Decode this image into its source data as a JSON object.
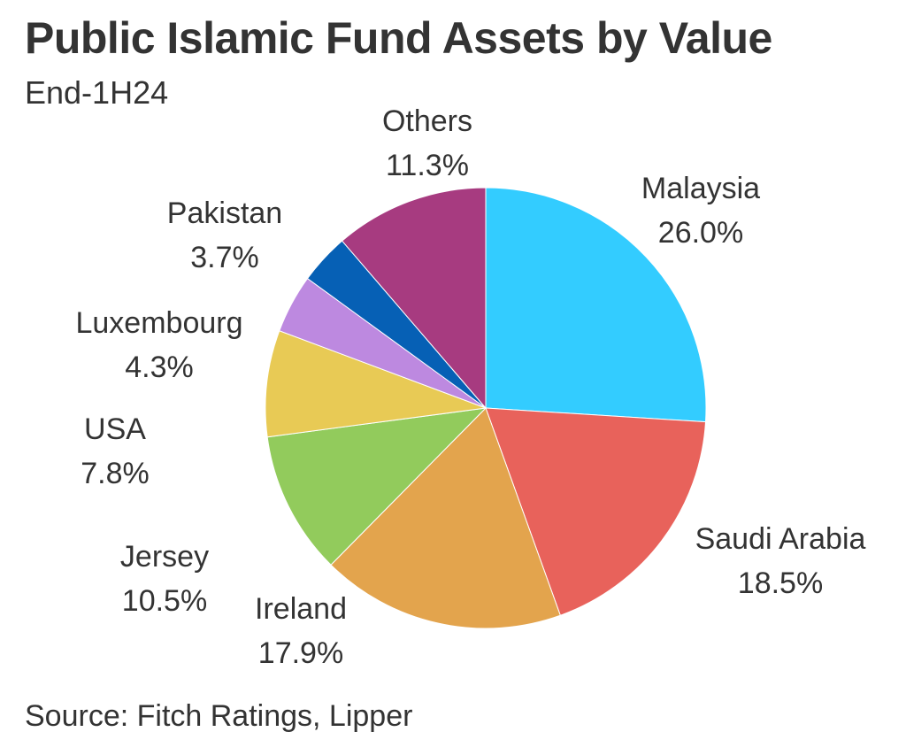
{
  "chart_data": {
    "type": "pie",
    "title": "Public Islamic Fund Assets by Value",
    "subtitle": "End-1H24",
    "source": "Source: Fitch Ratings, Lipper",
    "slices": [
      {
        "label": "Malaysia",
        "value": 26.0,
        "value_label": "26.0%",
        "color": "#33CCFF"
      },
      {
        "label": "Saudi Arabia",
        "value": 18.5,
        "value_label": "18.5%",
        "color": "#E8625B"
      },
      {
        "label": "Ireland",
        "value": 17.9,
        "value_label": "17.9%",
        "color": "#E3A44D"
      },
      {
        "label": "Jersey",
        "value": 10.5,
        "value_label": "10.5%",
        "color": "#92CB5C"
      },
      {
        "label": "USA",
        "value": 7.8,
        "value_label": "7.8%",
        "color": "#E8CA55"
      },
      {
        "label": "Luxembourg",
        "value": 4.3,
        "value_label": "4.3%",
        "color": "#BD89E0"
      },
      {
        "label": "Pakistan",
        "value": 3.7,
        "value_label": "3.7%",
        "color": "#0660B5"
      },
      {
        "label": "Others",
        "value": 11.3,
        "value_label": "11.3%",
        "color": "#A73B80"
      }
    ],
    "start_angle": "12 o'clock",
    "direction": "clockwise",
    "legend": "none (direct labels)"
  }
}
